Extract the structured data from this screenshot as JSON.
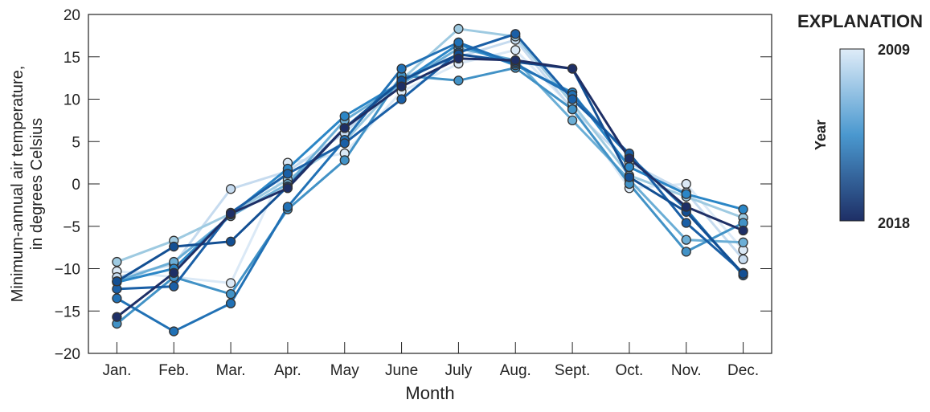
{
  "chart_data": {
    "type": "line",
    "xlabel": "Month",
    "ylabel": [
      "Minimum-annual air temperature,",
      "in degrees Celsius"
    ],
    "categories": [
      "Jan.",
      "Feb.",
      "Mar.",
      "Apr.",
      "May",
      "June",
      "July",
      "Aug.",
      "Sept.",
      "Oct.",
      "Nov.",
      "Dec."
    ],
    "ylim": [
      -20,
      20
    ],
    "yticks": [
      20,
      15,
      10,
      5,
      0,
      -5,
      -10,
      -15,
      -20
    ],
    "ytick_labels": [
      "20",
      "15",
      "10",
      "5",
      "0",
      "−5",
      "−10",
      "−15",
      "−20"
    ],
    "grid": false,
    "legend": {
      "title": "EXPLANATION",
      "label": "Year",
      "min_label": "2009",
      "max_label": "2018",
      "placement": "right",
      "colormap": [
        "#dfecf8",
        "#1e2f66"
      ]
    },
    "series": [
      {
        "year": 2009,
        "color": "#dbe9f6",
        "values": [
          -10.3,
          -11,
          -11.7,
          2.5,
          3.6,
          10.9,
          14.2,
          15.8,
          9,
          -0.5,
          0,
          -7.8
        ]
      },
      {
        "year": 2010,
        "color": "#c6dbef",
        "values": [
          -11,
          -9.5,
          -0.6,
          1.5,
          6,
          12.5,
          15,
          17,
          8.8,
          2.5,
          -1,
          -8.9
        ]
      },
      {
        "year": 2011,
        "color": "#9ecae1",
        "values": [
          -9.2,
          -6.7,
          -3.5,
          0.5,
          5,
          12.3,
          18.3,
          17.4,
          9.5,
          1,
          -1.5,
          -4
        ]
      },
      {
        "year": 2012,
        "color": "#6baed6",
        "values": [
          -11.5,
          -9.2,
          -3.8,
          0,
          7.5,
          11.8,
          16,
          14.6,
          7.5,
          0.5,
          -6.6,
          -6.9
        ]
      },
      {
        "year": 2013,
        "color": "#4292c6",
        "values": [
          -16.5,
          -11,
          -13,
          -3,
          2.8,
          12.8,
          12.2,
          13.7,
          8.8,
          0,
          -8,
          -4.6
        ]
      },
      {
        "year": 2014,
        "color": "#2b86c6",
        "values": [
          -11.6,
          -10,
          -3.6,
          1.8,
          8,
          12,
          16.5,
          14,
          10.8,
          2,
          -1.2,
          -3
        ]
      },
      {
        "year": 2015,
        "color": "#2171b5",
        "values": [
          -13.5,
          -17.4,
          -14.1,
          -2.7,
          5.2,
          13.6,
          16.7,
          14.2,
          10.5,
          3.3,
          -3,
          -10.8
        ]
      },
      {
        "year": 2016,
        "color": "#1a5fa6",
        "values": [
          -12.4,
          -12.1,
          -3.4,
          1.2,
          4.8,
          10,
          15.5,
          17.7,
          10,
          3.6,
          -4.6,
          -10.5
        ]
      },
      {
        "year": 2017,
        "color": "#134f93",
        "values": [
          -11.5,
          -7.4,
          -6.8,
          -0.3,
          6.6,
          12.2,
          15.3,
          14.4,
          13.6,
          0.8,
          -3.3,
          -10.6
        ]
      },
      {
        "year": 2018,
        "color": "#1e2f66",
        "values": [
          -15.7,
          -10.5,
          -3.5,
          -0.5,
          6.6,
          11.5,
          14.8,
          14.6,
          13.6,
          3,
          -2.7,
          -5.5
        ]
      }
    ]
  }
}
